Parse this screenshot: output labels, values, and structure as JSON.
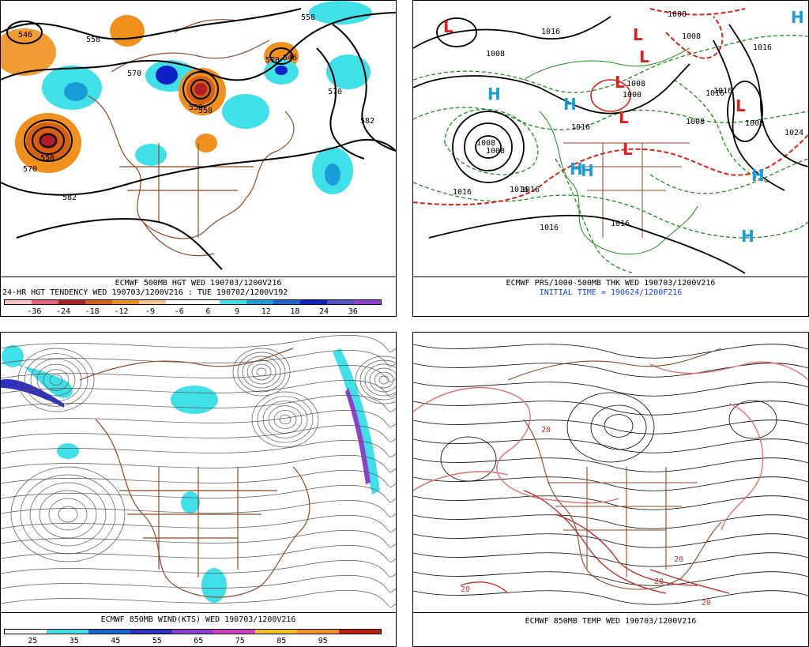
{
  "panels": {
    "hgt": {
      "caption1": "ECMWF 500MB HGT WED 190703/1200V216",
      "caption2": "24-HR HGT TENDENCY WED 190703/1200V216 : TUE 190702/1200V192",
      "colorbar_colors": [
        "#f9c0c8",
        "#e8607a",
        "#b01e2a",
        "#d46014",
        "#f0901e",
        "#f7c58a",
        "#ffffff",
        "#ffffff",
        "#40e0e8",
        "#1a9cd8",
        "#1a66d0",
        "#1020c8",
        "#5050c8",
        "#9040d0"
      ],
      "tick_labels": [
        "-36",
        "-24",
        "-18",
        "-12",
        "-9",
        "-6",
        "6",
        "9",
        "12",
        "18",
        "24",
        "36"
      ],
      "contour_labels": [
        "546",
        "558",
        "570",
        "546",
        "558",
        "570",
        "558",
        "570",
        "582",
        "558",
        "582",
        "570",
        "558"
      ]
    },
    "prs": {
      "caption1": "ECMWF PRS/1000-500MB THK WED 190703/1200V216",
      "caption2": "INITIAL TIME = 190624/1200F216",
      "isobar_labels": [
        "1016",
        "1008",
        "1016",
        "1008",
        "1008",
        "1016",
        "1016",
        "1016",
        "1016",
        "1016",
        "1008",
        "1008",
        "1016",
        "1024",
        "1016",
        "1008",
        "1008",
        "1000",
        "1008",
        "1016"
      ],
      "low_symbol": "L",
      "high_symbol": "H"
    },
    "wind": {
      "caption1": "ECMWF 850MB WIND(KTS) WED 190703/1200V216",
      "colorbar_colors": [
        "#ffffff",
        "#40e0e8",
        "#1a66d0",
        "#3030c0",
        "#9040d0",
        "#d040c0",
        "#f0c020",
        "#f0901e",
        "#c02010"
      ],
      "tick_labels": [
        "25",
        "35",
        "45",
        "55",
        "65",
        "75",
        "85",
        "95"
      ]
    },
    "temp": {
      "caption1": "ECMWF 850MB TEMP WED 190703/1200V216",
      "contour_labels": [
        "20",
        "20",
        "20",
        "20",
        "20"
      ]
    }
  }
}
